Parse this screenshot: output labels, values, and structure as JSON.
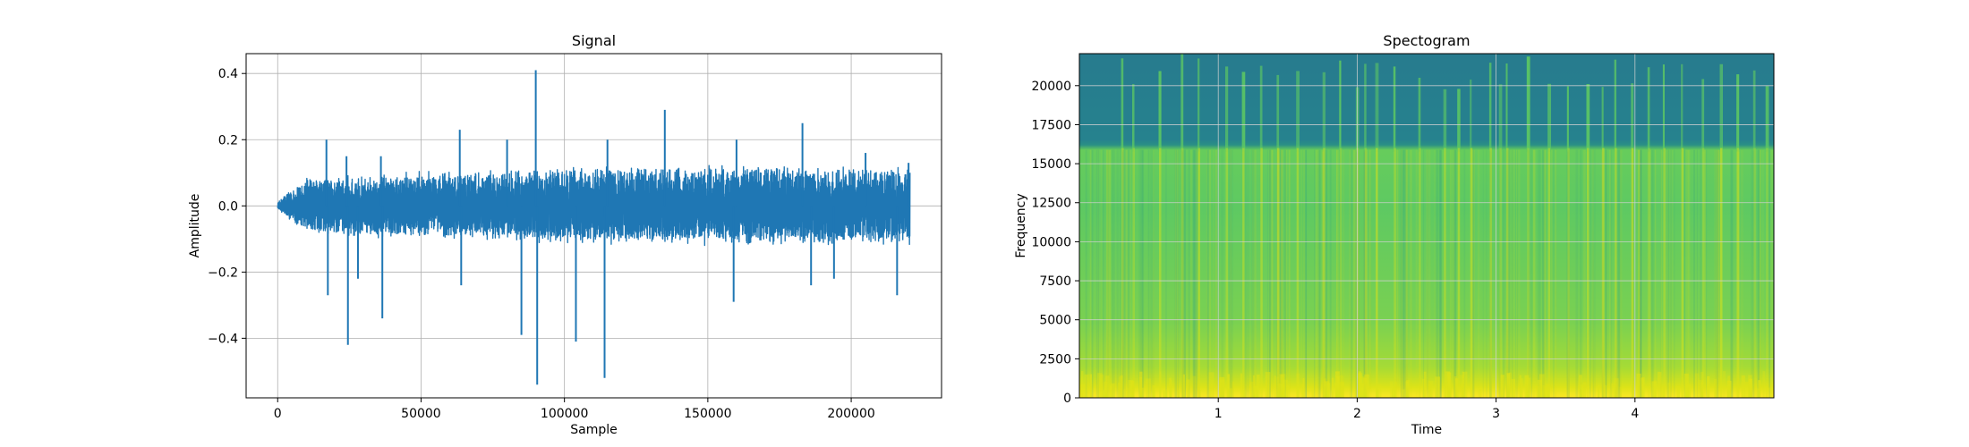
{
  "chart_data": [
    {
      "type": "line",
      "title": "Signal",
      "xlabel": "Sample",
      "ylabel": "Amplitude",
      "xlim": [
        -11000,
        231500
      ],
      "ylim": [
        -0.58,
        0.46
      ],
      "xticks": [
        0,
        50000,
        100000,
        150000,
        200000
      ],
      "xtick_labels": [
        "0",
        "50000",
        "100000",
        "150000",
        "200000"
      ],
      "yticks": [
        0.4,
        0.2,
        0.0,
        -0.2,
        -0.4
      ],
      "ytick_labels": [
        "0.4",
        "0.2",
        "0.0",
        "−0.2",
        "−0.4"
      ],
      "grid": true,
      "color": "#1f77b4",
      "series": [
        {
          "name": "",
          "n_samples": 220500,
          "envelope_x": [
            0,
            5000,
            10000,
            20000,
            40000,
            60000,
            80000,
            100000,
            120000,
            140000,
            160000,
            180000,
            200000,
            220500
          ],
          "envelope_upper": [
            0.01,
            0.06,
            0.09,
            0.09,
            0.1,
            0.11,
            0.11,
            0.12,
            0.12,
            0.12,
            0.13,
            0.12,
            0.12,
            0.12
          ],
          "envelope_lower": [
            -0.01,
            -0.05,
            -0.08,
            -0.09,
            -0.1,
            -0.1,
            -0.11,
            -0.12,
            -0.12,
            -0.12,
            -0.12,
            -0.12,
            -0.12,
            -0.12
          ],
          "spikes": [
            {
              "x": 17000,
              "y": 0.2
            },
            {
              "x": 17500,
              "y": -0.27
            },
            {
              "x": 24000,
              "y": 0.15
            },
            {
              "x": 24500,
              "y": -0.42
            },
            {
              "x": 28000,
              "y": -0.22
            },
            {
              "x": 36000,
              "y": 0.15
            },
            {
              "x": 36500,
              "y": -0.34
            },
            {
              "x": 63500,
              "y": 0.23
            },
            {
              "x": 64000,
              "y": -0.24
            },
            {
              "x": 80000,
              "y": 0.2
            },
            {
              "x": 85000,
              "y": -0.39
            },
            {
              "x": 90000,
              "y": 0.41
            },
            {
              "x": 90500,
              "y": -0.54
            },
            {
              "x": 104000,
              "y": -0.41
            },
            {
              "x": 114000,
              "y": -0.52
            },
            {
              "x": 115000,
              "y": 0.2
            },
            {
              "x": 135000,
              "y": 0.29
            },
            {
              "x": 159000,
              "y": -0.29
            },
            {
              "x": 160000,
              "y": 0.2
            },
            {
              "x": 183000,
              "y": 0.25
            },
            {
              "x": 186000,
              "y": -0.24
            },
            {
              "x": 194000,
              "y": -0.22
            },
            {
              "x": 205000,
              "y": 0.16
            },
            {
              "x": 216000,
              "y": -0.27
            },
            {
              "x": 220000,
              "y": 0.13
            }
          ]
        }
      ]
    },
    {
      "type": "heatmap",
      "title": "Spectogram",
      "xlabel": "Time",
      "ylabel": "Frequency",
      "xlim": [
        0,
        5.0
      ],
      "ylim": [
        0,
        22050
      ],
      "xticks": [
        1,
        2,
        3,
        4
      ],
      "xtick_labels": [
        "1",
        "2",
        "3",
        "4"
      ],
      "yticks": [
        0,
        2500,
        5000,
        7500,
        10000,
        12500,
        15000,
        17500,
        20000
      ],
      "ytick_labels": [
        "0",
        "2500",
        "5000",
        "7500",
        "10000",
        "12500",
        "15000",
        "17500",
        "20000"
      ],
      "grid": true,
      "colormap": "viridis",
      "colors": {
        "high": "#dde318",
        "mid": "#5ec962",
        "low": "#21918c",
        "top_band": "#2a788e"
      },
      "lowpass_cutoff_hz": 16000,
      "transient_times": [
        0.31,
        0.39,
        0.58,
        0.74,
        0.86,
        1.06,
        1.18,
        1.31,
        1.43,
        1.57,
        1.76,
        1.88,
        2.0,
        2.06,
        2.14,
        2.27,
        2.45,
        2.63,
        2.73,
        2.82,
        2.96,
        3.03,
        3.08,
        3.23,
        3.38,
        3.52,
        3.66,
        3.77,
        3.86,
        3.98,
        4.1,
        4.21,
        4.34,
        4.49,
        4.62,
        4.74,
        4.86,
        4.95
      ]
    }
  ]
}
